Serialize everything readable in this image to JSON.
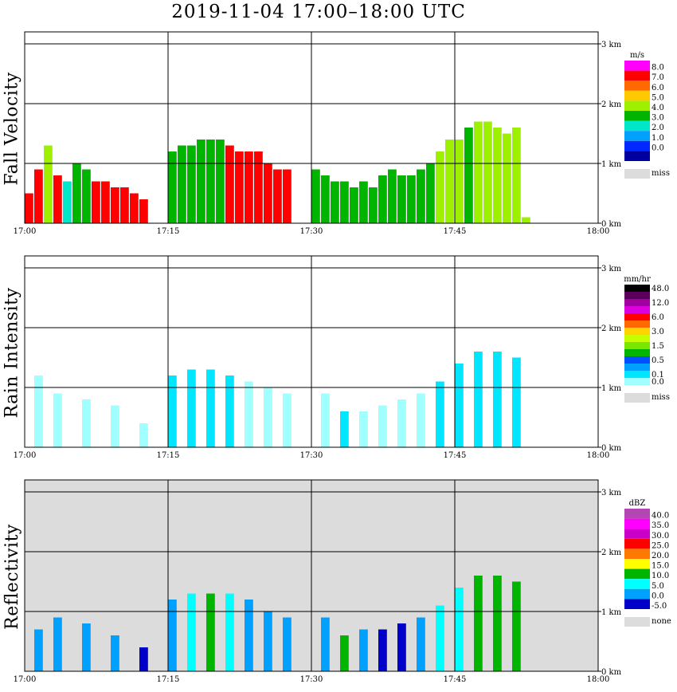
{
  "title": "2019-11-04   17:00–18:00 UTC",
  "chart_data": [
    {
      "type": "heatmap",
      "ylabel": "Fall Velocity",
      "x_ticks": [
        "17:00",
        "17:15",
        "17:30",
        "17:45",
        "18:00"
      ],
      "y_ticks": [
        "0 km",
        "1 km",
        "2 km",
        "3 km"
      ],
      "xlim_min": [
        0,
        60
      ],
      "ylim_km": [
        0,
        3.2
      ],
      "legend_unit": "m/s",
      "legend": [
        {
          "label": "8.0",
          "color": "#ff00ff"
        },
        {
          "label": "7.0",
          "color": "#ff0000"
        },
        {
          "label": "6.0",
          "color": "#ff6a00"
        },
        {
          "label": "5.0",
          "color": "#ffc800"
        },
        {
          "label": "4.0",
          "color": "#9cf000"
        },
        {
          "label": "3.0",
          "color": "#00b400"
        },
        {
          "label": "2.0",
          "color": "#00e6c8"
        },
        {
          "label": "1.0",
          "color": "#00a0ff"
        },
        {
          "label": "0.0",
          "color": "#0028ff"
        },
        {
          "label": "",
          "color": "#0000a0"
        }
      ],
      "miss_label": "miss",
      "columns": [
        {
          "t": 0.5,
          "top": 0.5,
          "c": 1
        },
        {
          "t": 1.5,
          "top": 0.9,
          "c": 1
        },
        {
          "t": 2.5,
          "top": 1.3,
          "c": 4
        },
        {
          "t": 3.5,
          "top": 0.8,
          "c": 1
        },
        {
          "t": 4.5,
          "top": 0.7,
          "c": 6
        },
        {
          "t": 5.5,
          "top": 1.0,
          "c": 5
        },
        {
          "t": 6.5,
          "top": 0.9,
          "c": 5
        },
        {
          "t": 7.5,
          "top": 0.7,
          "c": 1
        },
        {
          "t": 8.5,
          "top": 0.7,
          "c": 1
        },
        {
          "t": 9.5,
          "top": 0.6,
          "c": 1
        },
        {
          "t": 10.5,
          "top": 0.6,
          "c": 1
        },
        {
          "t": 11.5,
          "top": 0.5,
          "c": 1
        },
        {
          "t": 12.5,
          "top": 0.4,
          "c": 1
        },
        {
          "t": 15.5,
          "top": 1.2,
          "c": 5
        },
        {
          "t": 16.5,
          "top": 1.3,
          "c": 5
        },
        {
          "t": 17.5,
          "top": 1.3,
          "c": 5
        },
        {
          "t": 18.5,
          "top": 1.4,
          "c": 5
        },
        {
          "t": 19.5,
          "top": 1.4,
          "c": 5
        },
        {
          "t": 20.5,
          "top": 1.4,
          "c": 5
        },
        {
          "t": 21.5,
          "top": 1.3,
          "c": 1
        },
        {
          "t": 22.5,
          "top": 1.2,
          "c": 1
        },
        {
          "t": 23.5,
          "top": 1.2,
          "c": 1
        },
        {
          "t": 24.5,
          "top": 1.2,
          "c": 1
        },
        {
          "t": 25.5,
          "top": 1.0,
          "c": 1
        },
        {
          "t": 26.5,
          "top": 0.9,
          "c": 1
        },
        {
          "t": 27.5,
          "top": 0.9,
          "c": 1
        },
        {
          "t": 30.5,
          "top": 0.9,
          "c": 5
        },
        {
          "t": 31.5,
          "top": 0.8,
          "c": 5
        },
        {
          "t": 32.5,
          "top": 0.7,
          "c": 5
        },
        {
          "t": 33.5,
          "top": 0.7,
          "c": 5
        },
        {
          "t": 34.5,
          "top": 0.6,
          "c": 5
        },
        {
          "t": 35.5,
          "top": 0.7,
          "c": 5
        },
        {
          "t": 36.5,
          "top": 0.6,
          "c": 5
        },
        {
          "t": 37.5,
          "top": 0.8,
          "c": 5
        },
        {
          "t": 38.5,
          "top": 0.9,
          "c": 5
        },
        {
          "t": 39.5,
          "top": 0.8,
          "c": 5
        },
        {
          "t": 40.5,
          "top": 0.8,
          "c": 5
        },
        {
          "t": 41.5,
          "top": 0.9,
          "c": 5
        },
        {
          "t": 42.5,
          "top": 1.0,
          "c": 5
        },
        {
          "t": 43.5,
          "top": 1.2,
          "c": 4
        },
        {
          "t": 44.5,
          "top": 1.4,
          "c": 4
        },
        {
          "t": 45.5,
          "top": 1.4,
          "c": 4
        },
        {
          "t": 46.5,
          "top": 1.6,
          "c": 5
        },
        {
          "t": 47.5,
          "top": 1.7,
          "c": 4
        },
        {
          "t": 48.5,
          "top": 1.7,
          "c": 4
        },
        {
          "t": 49.5,
          "top": 1.6,
          "c": 4
        },
        {
          "t": 50.5,
          "top": 1.5,
          "c": 4
        },
        {
          "t": 51.5,
          "top": 1.6,
          "c": 4
        },
        {
          "t": 52.5,
          "top": 0.1,
          "c": 4
        }
      ]
    },
    {
      "type": "heatmap",
      "ylabel": "Rain Intensity",
      "x_ticks": [
        "17:00",
        "17:15",
        "17:30",
        "17:45",
        "18:00"
      ],
      "y_ticks": [
        "0 km",
        "1 km",
        "2 km",
        "3 km"
      ],
      "xlim_min": [
        0,
        60
      ],
      "ylim_km": [
        0,
        3.2
      ],
      "legend_unit": "mm/hr",
      "legend": [
        {
          "label": "48.0",
          "color": "#000000"
        },
        {
          "label": "",
          "color": "#5a005a"
        },
        {
          "label": "12.0",
          "color": "#a000a0"
        },
        {
          "label": "",
          "color": "#dc00dc"
        },
        {
          "label": "6.0",
          "color": "#ff0000"
        },
        {
          "label": "",
          "color": "#ff6a00"
        },
        {
          "label": "3.0",
          "color": "#ffd200"
        },
        {
          "label": "",
          "color": "#c8ff00"
        },
        {
          "label": "1.5",
          "color": "#78e600"
        },
        {
          "label": "",
          "color": "#00b400"
        },
        {
          "label": "0.5",
          "color": "#0050ff"
        },
        {
          "label": "",
          "color": "#00a0ff"
        },
        {
          "label": "0.1",
          "color": "#00e6ff"
        },
        {
          "label": "0.0",
          "color": "#a0ffff"
        }
      ],
      "miss_label": "miss",
      "columns": [
        {
          "t": 1.5,
          "top": 1.2,
          "c": 13
        },
        {
          "t": 3.5,
          "top": 0.9,
          "c": 13
        },
        {
          "t": 6.5,
          "top": 0.8,
          "c": 13
        },
        {
          "t": 9.5,
          "top": 0.7,
          "c": 13
        },
        {
          "t": 12.5,
          "top": 0.4,
          "c": 13
        },
        {
          "t": 15.5,
          "top": 1.2,
          "c": 12
        },
        {
          "t": 17.5,
          "top": 1.3,
          "c": 12
        },
        {
          "t": 19.5,
          "top": 1.3,
          "c": 12
        },
        {
          "t": 21.5,
          "top": 1.2,
          "c": 12
        },
        {
          "t": 23.5,
          "top": 1.1,
          "c": 13
        },
        {
          "t": 25.5,
          "top": 1.0,
          "c": 13
        },
        {
          "t": 27.5,
          "top": 0.9,
          "c": 13
        },
        {
          "t": 31.5,
          "top": 0.9,
          "c": 13
        },
        {
          "t": 33.5,
          "top": 0.6,
          "c": 12
        },
        {
          "t": 35.5,
          "top": 0.6,
          "c": 13
        },
        {
          "t": 37.5,
          "top": 0.7,
          "c": 13
        },
        {
          "t": 39.5,
          "top": 0.8,
          "c": 13
        },
        {
          "t": 41.5,
          "top": 0.9,
          "c": 13
        },
        {
          "t": 43.5,
          "top": 1.1,
          "c": 12
        },
        {
          "t": 45.5,
          "top": 1.4,
          "c": 12
        },
        {
          "t": 47.5,
          "top": 1.6,
          "c": 12
        },
        {
          "t": 49.5,
          "top": 1.6,
          "c": 12
        },
        {
          "t": 51.5,
          "top": 1.5,
          "c": 12
        }
      ]
    },
    {
      "type": "heatmap",
      "ylabel": "Reflectivity",
      "x_ticks": [
        "17:00",
        "17:15",
        "17:30",
        "17:45",
        "18:00"
      ],
      "y_ticks": [
        "0 km",
        "1 km",
        "2 km",
        "3 km"
      ],
      "xlim_min": [
        0,
        60
      ],
      "ylim_km": [
        0,
        3.2
      ],
      "legend_unit": "dBZ",
      "legend": [
        {
          "label": "40.0",
          "color": "#b446b4"
        },
        {
          "label": "35.0",
          "color": "#ff00ff"
        },
        {
          "label": "30.0",
          "color": "#c800c8"
        },
        {
          "label": "25.0",
          "color": "#ff0000"
        },
        {
          "label": "20.0",
          "color": "#ff7800"
        },
        {
          "label": "15.0",
          "color": "#ffff00"
        },
        {
          "label": "10.0",
          "color": "#00b400"
        },
        {
          "label": "5.0",
          "color": "#00ffff"
        },
        {
          "label": "0.0",
          "color": "#00a0ff"
        },
        {
          "label": "-5.0",
          "color": "#0000c8"
        }
      ],
      "miss_label": "none",
      "columns": [
        {
          "t": 1.5,
          "top": 0.7,
          "c": 8
        },
        {
          "t": 3.5,
          "top": 0.9,
          "c": 8
        },
        {
          "t": 6.5,
          "top": 0.8,
          "c": 8
        },
        {
          "t": 9.5,
          "top": 0.6,
          "c": 8
        },
        {
          "t": 12.5,
          "top": 0.4,
          "c": 9
        },
        {
          "t": 15.5,
          "top": 1.2,
          "c": 8
        },
        {
          "t": 17.5,
          "top": 1.3,
          "c": 7
        },
        {
          "t": 19.5,
          "top": 1.3,
          "c": 6
        },
        {
          "t": 21.5,
          "top": 1.3,
          "c": 7
        },
        {
          "t": 23.5,
          "top": 1.2,
          "c": 8
        },
        {
          "t": 25.5,
          "top": 1.0,
          "c": 8
        },
        {
          "t": 27.5,
          "top": 0.9,
          "c": 8
        },
        {
          "t": 31.5,
          "top": 0.9,
          "c": 8
        },
        {
          "t": 33.5,
          "top": 0.6,
          "c": 6
        },
        {
          "t": 35.5,
          "top": 0.7,
          "c": 8
        },
        {
          "t": 37.5,
          "top": 0.7,
          "c": 9
        },
        {
          "t": 39.5,
          "top": 0.8,
          "c": 9
        },
        {
          "t": 41.5,
          "top": 0.9,
          "c": 8
        },
        {
          "t": 43.5,
          "top": 1.1,
          "c": 7
        },
        {
          "t": 45.5,
          "top": 1.4,
          "c": 7
        },
        {
          "t": 47.5,
          "top": 1.6,
          "c": 6
        },
        {
          "t": 49.5,
          "top": 1.6,
          "c": 6
        },
        {
          "t": 51.5,
          "top": 1.5,
          "c": 6
        }
      ]
    }
  ]
}
